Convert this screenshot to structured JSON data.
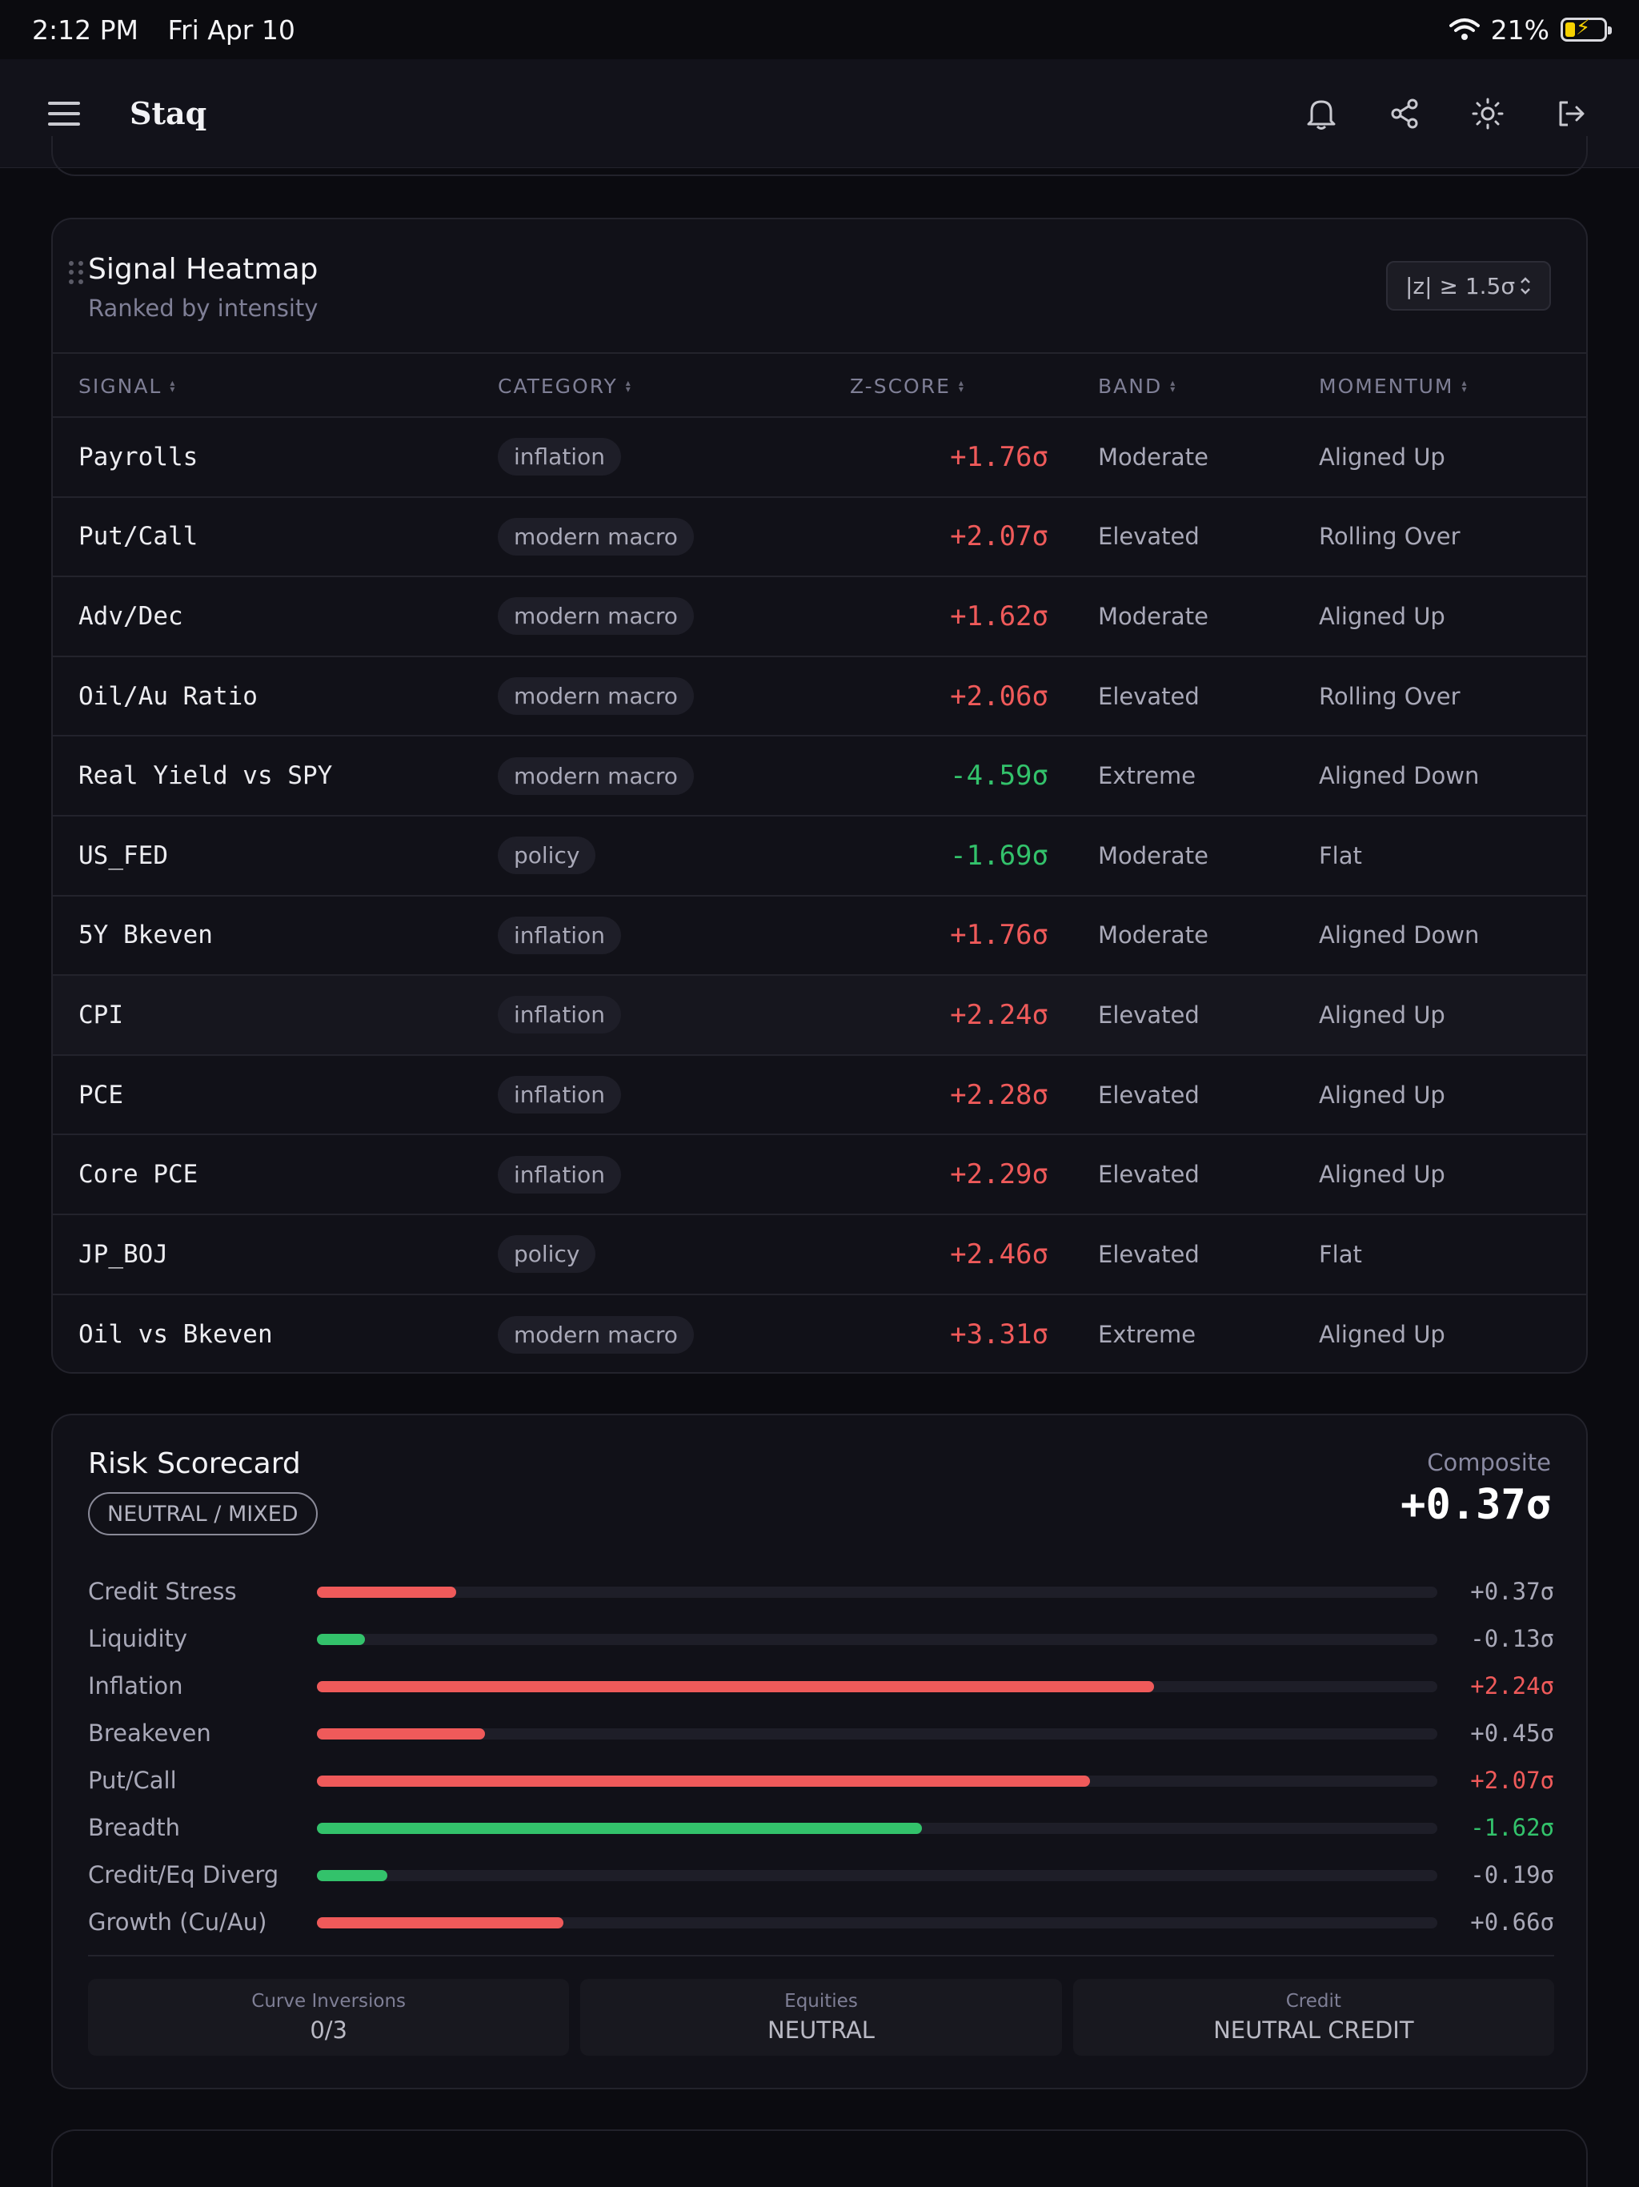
{
  "status_bar": {
    "time": "2:12 PM",
    "date": "Fri Apr 10",
    "battery": "21%"
  },
  "header": {
    "brand": "Staq",
    "icons": [
      "menu-icon",
      "bell-icon",
      "share-icon",
      "sun-icon",
      "logout-icon"
    ]
  },
  "heatmap": {
    "title": "Signal Heatmap",
    "subtitle": "Ranked by intensity",
    "filter": "|z| ≥ 1.5σ",
    "columns": [
      "SIGNAL",
      "CATEGORY",
      "Z-SCORE",
      "BAND",
      "MOMENTUM"
    ],
    "rows": [
      {
        "signal": "Payrolls",
        "category": "inflation",
        "z": "+1.76σ",
        "dir": "pos",
        "band": "Moderate",
        "momentum": "Aligned Up"
      },
      {
        "signal": "Put/Call",
        "category": "modern macro",
        "z": "+2.07σ",
        "dir": "pos",
        "band": "Elevated",
        "momentum": "Rolling Over"
      },
      {
        "signal": "Adv/Dec",
        "category": "modern macro",
        "z": "+1.62σ",
        "dir": "pos",
        "band": "Moderate",
        "momentum": "Aligned Up"
      },
      {
        "signal": "Oil/Au Ratio",
        "category": "modern macro",
        "z": "+2.06σ",
        "dir": "pos",
        "band": "Elevated",
        "momentum": "Rolling Over"
      },
      {
        "signal": "Real Yield vs SPY",
        "category": "modern macro",
        "z": "-4.59σ",
        "dir": "neg",
        "band": "Extreme",
        "momentum": "Aligned Down"
      },
      {
        "signal": "US_FED",
        "category": "policy",
        "z": "-1.69σ",
        "dir": "neg",
        "band": "Moderate",
        "momentum": "Flat"
      },
      {
        "signal": "5Y Bkeven",
        "category": "inflation",
        "z": "+1.76σ",
        "dir": "pos",
        "band": "Moderate",
        "momentum": "Aligned Down"
      },
      {
        "signal": "CPI",
        "category": "inflation",
        "z": "+2.24σ",
        "dir": "pos",
        "band": "Elevated",
        "momentum": "Aligned Up",
        "highlight": true
      },
      {
        "signal": "PCE",
        "category": "inflation",
        "z": "+2.28σ",
        "dir": "pos",
        "band": "Elevated",
        "momentum": "Aligned Up"
      },
      {
        "signal": "Core PCE",
        "category": "inflation",
        "z": "+2.29σ",
        "dir": "pos",
        "band": "Elevated",
        "momentum": "Aligned Up"
      },
      {
        "signal": "JP_BOJ",
        "category": "policy",
        "z": "+2.46σ",
        "dir": "pos",
        "band": "Elevated",
        "momentum": "Flat"
      },
      {
        "signal": "Oil vs Bkeven",
        "category": "modern macro",
        "z": "+3.31σ",
        "dir": "pos",
        "band": "Extreme",
        "momentum": "Aligned Up"
      }
    ]
  },
  "scorecard": {
    "title": "Risk Scorecard",
    "regime": "NEUTRAL / MIXED",
    "composite_label": "Composite",
    "composite_value": "+0.37σ",
    "items": [
      {
        "label": "Credit Stress",
        "value": "+0.37σ",
        "fraction": 0.124,
        "color": "#ef5a5a",
        "tone": "neutral"
      },
      {
        "label": "Liquidity",
        "value": "-0.13σ",
        "fraction": 0.043,
        "color": "#33c26b",
        "tone": "neutral"
      },
      {
        "label": "Inflation",
        "value": "+2.24σ",
        "fraction": 0.747,
        "color": "#ef5a5a",
        "tone": "pos"
      },
      {
        "label": "Breakeven",
        "value": "+0.45σ",
        "fraction": 0.15,
        "color": "#ef5a5a",
        "tone": "neutral"
      },
      {
        "label": "Put/Call",
        "value": "+2.07σ",
        "fraction": 0.69,
        "color": "#ef5a5a",
        "tone": "pos"
      },
      {
        "label": "Breadth",
        "value": "-1.62σ",
        "fraction": 0.54,
        "color": "#33c26b",
        "tone": "neg"
      },
      {
        "label": "Credit/Eq Diverg",
        "value": "-0.19σ",
        "fraction": 0.063,
        "color": "#33c26b",
        "tone": "neutral"
      },
      {
        "label": "Growth (Cu/Au)",
        "value": "+0.66σ",
        "fraction": 0.22,
        "color": "#ef5a5a",
        "tone": "neutral"
      }
    ],
    "stats": [
      {
        "label": "Curve Inversions",
        "value": "0/3"
      },
      {
        "label": "Equities",
        "value": "NEUTRAL"
      },
      {
        "label": "Credit",
        "value": "NEUTRAL CREDIT"
      }
    ]
  },
  "colors": {
    "positive": "#ef5a5a",
    "negative": "#33c26b",
    "background": "#0b0b10",
    "card": "#111118"
  }
}
